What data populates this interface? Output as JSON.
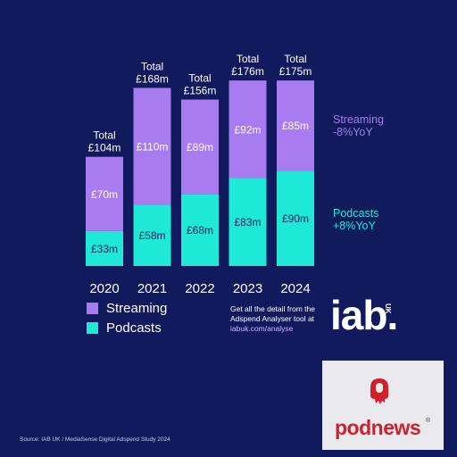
{
  "chart_data": {
    "type": "bar",
    "stacked": true,
    "categories": [
      "2020",
      "2021",
      "2022",
      "2023",
      "2024"
    ],
    "series": [
      {
        "name": "Podcasts",
        "values": [
          33,
          58,
          68,
          83,
          90
        ],
        "labels": [
          "£33m",
          "£58m",
          "£68m",
          "£83m",
          "£90m"
        ],
        "color": "#1de9d6"
      },
      {
        "name": "Streaming",
        "values": [
          70,
          110,
          89,
          92,
          85
        ],
        "labels": [
          "£70m",
          "£110m",
          "£89m",
          "£92m",
          "£85m"
        ],
        "color": "#a97bf0"
      }
    ],
    "totals": [
      {
        "line1": "Total",
        "line2": "£104m",
        "value": 104
      },
      {
        "line1": "Total",
        "line2": "£168m",
        "value": 168
      },
      {
        "line1": "Total",
        "line2": "£156m",
        "value": 156
      },
      {
        "line1": "Total",
        "line2": "£176m",
        "value": 176
      },
      {
        "line1": "Total",
        "line2": "£175m",
        "value": 175
      }
    ],
    "ylim": [
      0,
      176
    ]
  },
  "legend": {
    "streaming": "Streaming",
    "podcasts": "Podcasts"
  },
  "side_labels": {
    "streaming_line1": "Streaming",
    "streaming_line2": "-8%YoY",
    "podcasts_line1": "Podcasts",
    "podcasts_line2": "+8%YoY"
  },
  "promo": {
    "line1": "Get all the detail from the",
    "line2": "Adspend Analyser tool at",
    "link": "iabuk.com/analyse"
  },
  "logo": {
    "iab": "iab.",
    "uk": "UK"
  },
  "brand": {
    "podnews": "podnews",
    "reg": "®"
  },
  "source": "Source: IAB UK / MediaSense Digital Adspend Study 2024",
  "colors": {
    "background": "#101a5c",
    "streaming": "#a97bf0",
    "podcasts": "#1de9d6",
    "text": "#ffffff",
    "podnews_red": "#d0212b"
  }
}
